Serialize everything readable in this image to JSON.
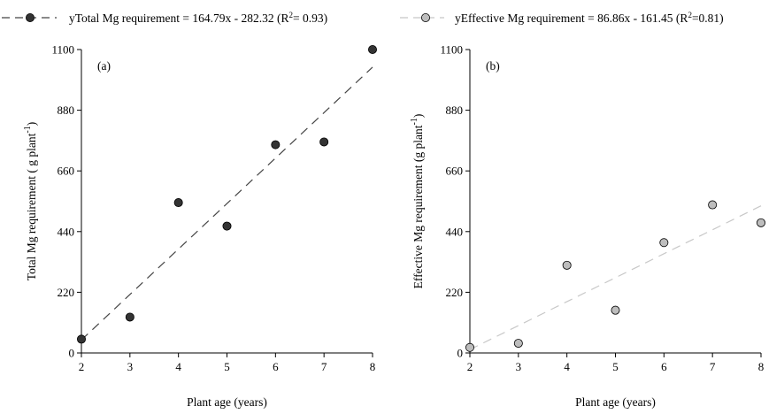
{
  "legend": [
    {
      "marker_fill": "#333333",
      "line_color": "#444444",
      "prefix": "y",
      "name": "Total Mg requirement",
      "eq_a": " = 164.79x - 282.32 (R",
      "sup": "2",
      "eq_b": "= 0.93)"
    },
    {
      "marker_fill": "#bdbdbd",
      "line_color": "#c8c8c8",
      "prefix": "y",
      "name": "Effective Mg requirement",
      "eq_a": "  = 86.86x - 161.45 (R",
      "sup": "2",
      "eq_b": "=0.81)"
    }
  ],
  "chart_data": [
    {
      "type": "scatter",
      "panel_label": "(a)",
      "xlabel": "Plant age (years)",
      "ylabel_main": "Total Mg requirement ( g plant",
      "ylabel_sup": "-1",
      "ylabel_end": ")",
      "xlim": [
        2,
        8
      ],
      "ylim": [
        0,
        1100
      ],
      "xticks": [
        2,
        3,
        4,
        5,
        6,
        7,
        8
      ],
      "yticks": [
        0,
        220,
        440,
        660,
        880,
        1100
      ],
      "marker_fill": "#333333",
      "line_color": "#444444",
      "series": [
        {
          "name": "Total Mg requirement",
          "x": [
            2,
            3,
            4,
            5,
            6,
            7,
            8
          ],
          "y": [
            50,
            130,
            545,
            460,
            755,
            765,
            1100
          ]
        }
      ],
      "trendline": {
        "slope": 164.79,
        "intercept": -282.32
      }
    },
    {
      "type": "scatter",
      "panel_label": "(b)",
      "xlabel": "Plant age (years)",
      "ylabel_main": "Effective  Mg requirement  (g plant",
      "ylabel_sup": "-1",
      "ylabel_end": ")",
      "xlim": [
        2,
        8
      ],
      "ylim": [
        0,
        1100
      ],
      "xticks": [
        2,
        3,
        4,
        5,
        6,
        7,
        8
      ],
      "yticks": [
        0,
        220,
        440,
        660,
        880,
        1100
      ],
      "marker_fill": "#bdbdbd",
      "line_color": "#c8c8c8",
      "series": [
        {
          "name": "Effective Mg requirement",
          "x": [
            2,
            3,
            4,
            5,
            6,
            7,
            8
          ],
          "y": [
            20,
            35,
            318,
            155,
            400,
            537,
            472
          ]
        }
      ],
      "trendline": {
        "slope": 86.86,
        "intercept": -161.45
      }
    }
  ]
}
